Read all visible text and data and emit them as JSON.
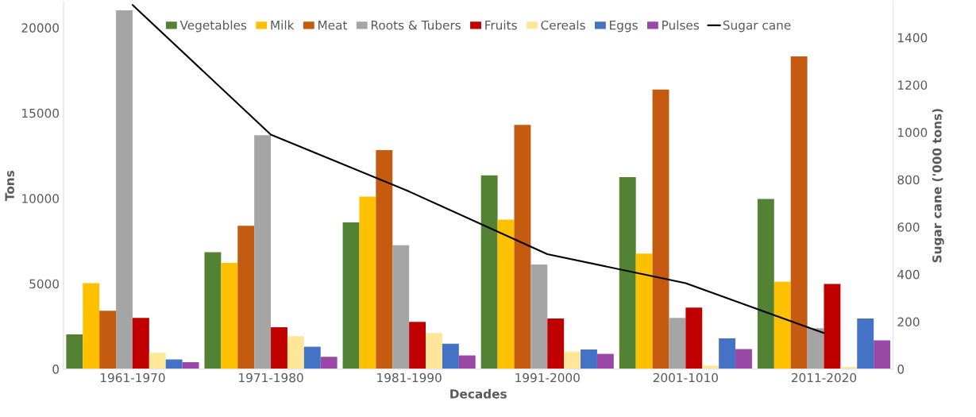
{
  "chart_data": {
    "type": "bar",
    "xlabel": "Decades",
    "ylabel": "Tons",
    "y2label": "Sugar cane ('000 tons)",
    "categories": [
      "1961-1970",
      "1971-1980",
      "1981-1990",
      "1991-2000",
      "2001-1010",
      "2011-2020"
    ],
    "series": [
      {
        "name": "Vegetables",
        "color": "#548235",
        "values": [
          2030,
          6850,
          8590,
          11350,
          11240,
          9960
        ]
      },
      {
        "name": "Milk",
        "color": "#ffc000",
        "values": [
          5030,
          6220,
          10100,
          8750,
          6770,
          5110
        ]
      },
      {
        "name": "Meat",
        "color": "#c55a11",
        "values": [
          3420,
          8390,
          12830,
          14300,
          16380,
          18320
        ]
      },
      {
        "name": "Roots & Tubers",
        "color": "#a5a5a5",
        "values": [
          21020,
          13700,
          7250,
          6130,
          3000,
          2390
        ]
      },
      {
        "name": "Fruits",
        "color": "#c00000",
        "values": [
          3000,
          2450,
          2760,
          2960,
          3600,
          4990
        ]
      },
      {
        "name": "Cereals",
        "color": "#ffe699",
        "values": [
          950,
          1920,
          2110,
          1030,
          200,
          120
        ]
      },
      {
        "name": "Eggs",
        "color": "#4472c4",
        "values": [
          570,
          1310,
          1480,
          1150,
          1800,
          2960
        ]
      },
      {
        "name": "Pulses",
        "color": "#9a48a8",
        "values": [
          400,
          710,
          800,
          890,
          1170,
          1680
        ]
      },
      {
        "name": "Sugar cane",
        "type": "line",
        "axis": "y2",
        "color": "#000000",
        "values": [
          1538,
          990,
          750,
          485,
          363,
          152
        ]
      }
    ],
    "ylim": [
      0,
      21500
    ],
    "yticks": [
      0,
      5000,
      10000,
      15000,
      20000
    ],
    "y2lim": [
      0,
      1550
    ],
    "y2ticks": [
      0,
      200,
      400,
      600,
      800,
      1000,
      1200,
      1400
    ],
    "grid": false,
    "legend": "top"
  }
}
